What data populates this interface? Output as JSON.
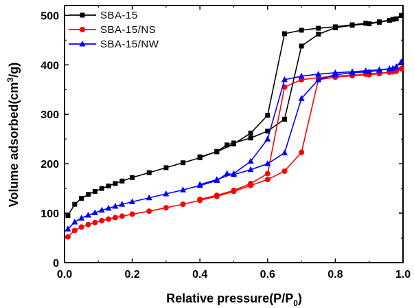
{
  "chart_data": {
    "type": "line",
    "title": "",
    "xlabel": "Relative pressure(P/P",
    "xlabel_sub": "0",
    "xlabel_end": ")",
    "ylabel": "Volume adsorbed(cm",
    "ylabel_sup": "3",
    "ylabel_end": "/g)",
    "xlim": [
      0,
      1.0
    ],
    "ylim": [
      0,
      520
    ],
    "xticks": [
      "0.0",
      "0.2",
      "0.4",
      "0.6",
      "0.8",
      "1.0"
    ],
    "yticks": [
      "0",
      "100",
      "200",
      "300",
      "400",
      "500"
    ],
    "grid": false,
    "legend_position": "top-left",
    "series": [
      {
        "name": "SBA-15",
        "color": "#000000",
        "marker": "square",
        "adsorption": [
          [
            0.01,
            95
          ],
          [
            0.03,
            118
          ],
          [
            0.05,
            130
          ],
          [
            0.07,
            138
          ],
          [
            0.09,
            144
          ],
          [
            0.11,
            150
          ],
          [
            0.13,
            155
          ],
          [
            0.15,
            160
          ],
          [
            0.17,
            165
          ],
          [
            0.2,
            172
          ],
          [
            0.25,
            182
          ],
          [
            0.3,
            192
          ],
          [
            0.35,
            202
          ],
          [
            0.4,
            212
          ],
          [
            0.45,
            225
          ],
          [
            0.48,
            238
          ],
          [
            0.5,
            242
          ],
          [
            0.55,
            252
          ],
          [
            0.6,
            266
          ],
          [
            0.65,
            290
          ],
          [
            0.7,
            438
          ],
          [
            0.75,
            462
          ],
          [
            0.8,
            475
          ],
          [
            0.85,
            480
          ],
          [
            0.9,
            483
          ],
          [
            0.93,
            486
          ],
          [
            0.96,
            490
          ],
          [
            0.98,
            493
          ],
          [
            0.995,
            500
          ]
        ],
        "desorption": [
          [
            0.995,
            500
          ],
          [
            0.97,
            492
          ],
          [
            0.93,
            487
          ],
          [
            0.89,
            484
          ],
          [
            0.85,
            481
          ],
          [
            0.8,
            477
          ],
          [
            0.75,
            474
          ],
          [
            0.7,
            470
          ],
          [
            0.65,
            463
          ],
          [
            0.6,
            298
          ],
          [
            0.55,
            262
          ],
          [
            0.5,
            240
          ],
          [
            0.45,
            224
          ],
          [
            0.4,
            214
          ]
        ]
      },
      {
        "name": "SBA-15/NS",
        "color": "#ff0000",
        "marker": "circle",
        "adsorption": [
          [
            0.01,
            52
          ],
          [
            0.03,
            65
          ],
          [
            0.05,
            72
          ],
          [
            0.07,
            77
          ],
          [
            0.09,
            81
          ],
          [
            0.11,
            85
          ],
          [
            0.13,
            88
          ],
          [
            0.15,
            91
          ],
          [
            0.17,
            94
          ],
          [
            0.2,
            98
          ],
          [
            0.25,
            104
          ],
          [
            0.3,
            111
          ],
          [
            0.35,
            118
          ],
          [
            0.4,
            126
          ],
          [
            0.45,
            134
          ],
          [
            0.5,
            144
          ],
          [
            0.55,
            156
          ],
          [
            0.6,
            168
          ],
          [
            0.65,
            185
          ],
          [
            0.7,
            223
          ],
          [
            0.75,
            370
          ],
          [
            0.8,
            375
          ],
          [
            0.85,
            378
          ],
          [
            0.9,
            380
          ],
          [
            0.93,
            382
          ],
          [
            0.96,
            385
          ],
          [
            0.98,
            387
          ],
          [
            0.995,
            392
          ]
        ],
        "desorption": [
          [
            0.995,
            392
          ],
          [
            0.97,
            386
          ],
          [
            0.93,
            383
          ],
          [
            0.89,
            381
          ],
          [
            0.85,
            379
          ],
          [
            0.8,
            377
          ],
          [
            0.75,
            374
          ],
          [
            0.7,
            370
          ],
          [
            0.65,
            355
          ],
          [
            0.6,
            180
          ],
          [
            0.55,
            160
          ],
          [
            0.5,
            146
          ],
          [
            0.45,
            136
          ],
          [
            0.4,
            128
          ]
        ]
      },
      {
        "name": "SBA-15/NW",
        "color": "#0000ff",
        "marker": "triangle",
        "adsorption": [
          [
            0.01,
            68
          ],
          [
            0.03,
            82
          ],
          [
            0.05,
            90
          ],
          [
            0.07,
            96
          ],
          [
            0.09,
            101
          ],
          [
            0.11,
            106
          ],
          [
            0.13,
            110
          ],
          [
            0.15,
            114
          ],
          [
            0.17,
            118
          ],
          [
            0.2,
            123
          ],
          [
            0.25,
            131
          ],
          [
            0.3,
            139
          ],
          [
            0.35,
            147
          ],
          [
            0.4,
            156
          ],
          [
            0.45,
            166
          ],
          [
            0.48,
            180
          ],
          [
            0.5,
            178
          ],
          [
            0.55,
            188
          ],
          [
            0.6,
            200
          ],
          [
            0.65,
            222
          ],
          [
            0.7,
            332
          ],
          [
            0.75,
            370
          ],
          [
            0.8,
            380
          ],
          [
            0.85,
            384
          ],
          [
            0.9,
            386
          ],
          [
            0.93,
            389
          ],
          [
            0.96,
            392
          ],
          [
            0.98,
            396
          ],
          [
            0.995,
            406
          ]
        ],
        "desorption": [
          [
            0.995,
            406
          ],
          [
            0.97,
            393
          ],
          [
            0.93,
            390
          ],
          [
            0.89,
            388
          ],
          [
            0.85,
            386
          ],
          [
            0.8,
            384
          ],
          [
            0.75,
            381
          ],
          [
            0.7,
            377
          ],
          [
            0.65,
            370
          ],
          [
            0.6,
            250
          ],
          [
            0.55,
            205
          ],
          [
            0.5,
            180
          ],
          [
            0.45,
            168
          ],
          [
            0.4,
            158
          ]
        ]
      }
    ]
  }
}
